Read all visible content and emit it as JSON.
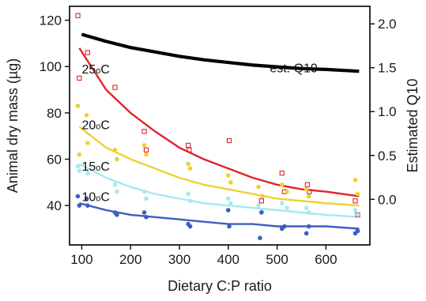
{
  "chart_data": {
    "type": "scatter",
    "xlabel": "Dietary C:P ratio",
    "ylabel": "Animal dry mass (µg)",
    "y2label": "Estimated Q10",
    "xlim": [
      75,
      690
    ],
    "ylim": [
      23,
      126
    ],
    "y2lim": [
      -0.52,
      2.2
    ],
    "xticks": [
      100,
      200,
      300,
      400,
      500,
      600
    ],
    "yticks": [
      40,
      60,
      80,
      100,
      120
    ],
    "y2ticks": [
      0.0,
      0.5,
      1.0,
      1.5,
      2.0
    ],
    "y2ticklabels": [
      "0.0",
      "0.5",
      "1.0",
      "1.5",
      "2.0"
    ],
    "grid": false,
    "series": [
      {
        "name": "25oC",
        "label_main": "25",
        "label_sub": "o",
        "label_unit": "C",
        "color": "#e0242c",
        "marker": "open-square",
        "label_at": [
          100,
          97
        ],
        "points": [
          [
            92,
            122
          ],
          [
            95,
            95
          ],
          [
            112,
            106
          ],
          [
            168,
            91
          ],
          [
            228,
            72
          ],
          [
            232,
            64
          ],
          [
            318,
            66
          ],
          [
            320,
            64
          ],
          [
            402,
            68
          ],
          [
            468,
            42
          ],
          [
            510,
            54
          ],
          [
            515,
            46
          ],
          [
            562,
            49
          ],
          [
            566,
            46
          ],
          [
            660,
            42
          ],
          [
            665,
            36
          ]
        ],
        "fit": [
          [
            95,
            108
          ],
          [
            150,
            90
          ],
          [
            200,
            80
          ],
          [
            250,
            72
          ],
          [
            300,
            65
          ],
          [
            350,
            60
          ],
          [
            400,
            56
          ],
          [
            450,
            52
          ],
          [
            500,
            49
          ],
          [
            550,
            47
          ],
          [
            600,
            46
          ],
          [
            668,
            44
          ]
        ]
      },
      {
        "name": "20oC",
        "label_main": "20",
        "label_sub": "o",
        "label_unit": "C",
        "color": "#f0d030",
        "marker": "filled-circle",
        "label_at": [
          100,
          73
        ],
        "points": [
          [
            92,
            83
          ],
          [
            95,
            62
          ],
          [
            110,
            79
          ],
          [
            112,
            67
          ],
          [
            168,
            64
          ],
          [
            172,
            60
          ],
          [
            228,
            66
          ],
          [
            232,
            62
          ],
          [
            318,
            58
          ],
          [
            322,
            56
          ],
          [
            400,
            53
          ],
          [
            405,
            50
          ],
          [
            462,
            48
          ],
          [
            470,
            44
          ],
          [
            510,
            49
          ],
          [
            520,
            46
          ],
          [
            560,
            47
          ],
          [
            565,
            44
          ],
          [
            660,
            51
          ],
          [
            665,
            45
          ]
        ],
        "fit": [
          [
            95,
            74
          ],
          [
            150,
            65
          ],
          [
            200,
            60
          ],
          [
            250,
            56
          ],
          [
            300,
            52
          ],
          [
            350,
            49
          ],
          [
            400,
            47
          ],
          [
            450,
            45
          ],
          [
            500,
            43
          ],
          [
            550,
            42
          ],
          [
            600,
            41
          ],
          [
            668,
            40
          ]
        ]
      },
      {
        "name": "15oC",
        "label_main": "15",
        "label_sub": "o",
        "label_unit": "C",
        "color": "#a8e8f2",
        "marker": "filled-circle",
        "label_at": [
          100,
          55
        ],
        "points": [
          [
            92,
            57
          ],
          [
            95,
            55
          ],
          [
            112,
            54
          ],
          [
            168,
            49
          ],
          [
            172,
            46
          ],
          [
            228,
            46
          ],
          [
            232,
            43
          ],
          [
            318,
            45
          ],
          [
            322,
            42
          ],
          [
            400,
            43
          ],
          [
            405,
            41
          ],
          [
            462,
            40
          ],
          [
            470,
            38
          ],
          [
            510,
            41
          ],
          [
            520,
            39
          ],
          [
            560,
            39
          ],
          [
            565,
            37
          ],
          [
            660,
            38
          ],
          [
            665,
            36
          ]
        ],
        "fit": [
          [
            95,
            58
          ],
          [
            150,
            52
          ],
          [
            200,
            48
          ],
          [
            250,
            45
          ],
          [
            300,
            43
          ],
          [
            350,
            41
          ],
          [
            400,
            40
          ],
          [
            450,
            39
          ],
          [
            500,
            38
          ],
          [
            550,
            37
          ],
          [
            600,
            36
          ],
          [
            668,
            35
          ]
        ]
      },
      {
        "name": "10oC",
        "label_main": "10",
        "label_sub": "o",
        "label_unit": "C",
        "color": "#3b5ec4",
        "marker": "filled-circle",
        "label_at": [
          100,
          42
        ],
        "points": [
          [
            92,
            44
          ],
          [
            95,
            40
          ],
          [
            110,
            43
          ],
          [
            112,
            40
          ],
          [
            168,
            37
          ],
          [
            172,
            36
          ],
          [
            228,
            37
          ],
          [
            232,
            35
          ],
          [
            318,
            32
          ],
          [
            322,
            31
          ],
          [
            400,
            38
          ],
          [
            402,
            31
          ],
          [
            465,
            26
          ],
          [
            468,
            37
          ],
          [
            510,
            30
          ],
          [
            515,
            31
          ],
          [
            560,
            28
          ],
          [
            565,
            31
          ],
          [
            660,
            28
          ],
          [
            665,
            29
          ]
        ],
        "fit": [
          [
            95,
            41
          ],
          [
            150,
            38
          ],
          [
            200,
            36
          ],
          [
            250,
            35
          ],
          [
            300,
            34
          ],
          [
            350,
            33
          ],
          [
            400,
            32
          ],
          [
            450,
            32
          ],
          [
            500,
            31
          ],
          [
            550,
            31
          ],
          [
            600,
            31
          ],
          [
            668,
            30
          ]
        ]
      }
    ],
    "q10": {
      "name": "est. Q10",
      "color": "#000000",
      "label_at": [
        485,
        1.45
      ],
      "line": [
        [
          100,
          1.88
        ],
        [
          150,
          1.8
        ],
        [
          200,
          1.73
        ],
        [
          250,
          1.68
        ],
        [
          300,
          1.63
        ],
        [
          350,
          1.59
        ],
        [
          400,
          1.56
        ],
        [
          450,
          1.53
        ],
        [
          500,
          1.51
        ],
        [
          550,
          1.49
        ],
        [
          600,
          1.48
        ],
        [
          668,
          1.46
        ]
      ]
    }
  }
}
